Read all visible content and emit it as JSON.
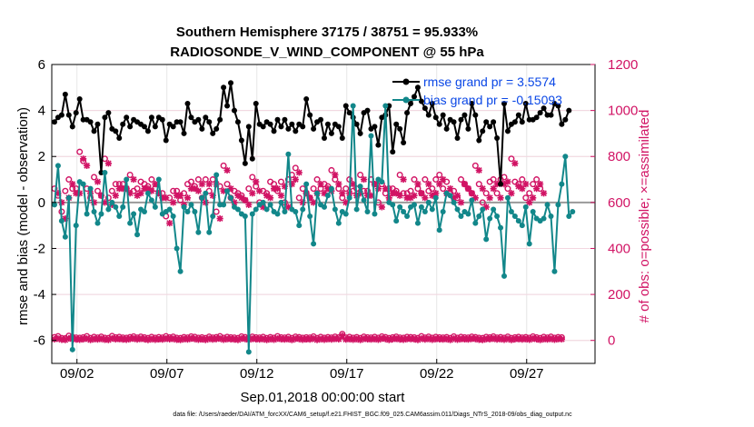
{
  "chart_data": {
    "type": "line",
    "title": "Southern Hemisphere 37175 / 38751 = 95.933%",
    "subtitle": "RADIOSONDE_V_WIND_COMPONENT @ 55 hPa",
    "xlabel": "Sep.01,2018 00:00:00 start",
    "ylabel_left": "rmse and bias (model - observation)",
    "ylabel_right": "# of obs: o=possible; ×=assimilated",
    "footnote": "data file: /Users/raeder/DAI/ATM_forcXX/CAM6_setup/f.e21.FHIST_BGC.f09_025.CAM6assim.011/Diags_NTrS_2018-09/obs_diag_output.nc",
    "xlim": [
      0.6,
      30.8
    ],
    "ylim_left": [
      -7,
      6
    ],
    "ylim_right": [
      -100,
      1200
    ],
    "x_ticks": [
      2,
      7,
      12,
      17,
      22,
      27
    ],
    "x_tick_labels": [
      "09/02",
      "09/07",
      "09/12",
      "09/17",
      "09/22",
      "09/27"
    ],
    "y_ticks_left": [
      -6,
      -4,
      -2,
      0,
      2,
      4,
      6
    ],
    "y_ticks_right": [
      0,
      200,
      400,
      600,
      800,
      1000,
      1200
    ],
    "grid": true,
    "legend": {
      "position": "top-right",
      "entries": [
        "rmse grand pr = 3.5574",
        "bias grand pr = -0.15093"
      ]
    },
    "colors": {
      "rmse": "#000000",
      "bias": "#12878a",
      "obs": "#d11364",
      "legend_text": "#0a47e6",
      "zero_line": "#9a9a9a"
    },
    "series": [
      {
        "name": "rmse",
        "values": [
          3.5,
          3.7,
          3.8,
          4.7,
          3.8,
          3.3,
          3.9,
          4.5,
          3.6,
          3.6,
          3.5,
          3.1,
          3.4,
          1.3,
          3.7,
          3.9,
          3.2,
          3.1,
          2.8,
          3.4,
          3.7,
          3.3,
          3.6,
          3.5,
          3.4,
          3.3,
          3.1,
          3.7,
          3.3,
          3.7,
          3.6,
          2.7,
          3.4,
          3.3,
          3.5,
          3.5,
          3.0,
          4.3,
          3.7,
          3.5,
          3.6,
          3.2,
          3.7,
          3.5,
          3.0,
          3.2,
          3.6,
          5.0,
          4.2,
          5.2,
          4.0,
          3.5,
          2.7,
          1.7,
          3.3,
          1.9,
          4.3,
          3.4,
          3.3,
          3.5,
          3.4,
          3.1,
          3.6,
          3.3,
          3.6,
          3.2,
          3.4,
          3.1,
          3.4,
          3.3,
          4.5,
          3.8,
          3.2,
          3.5,
          3.6,
          2.8,
          3.4,
          3.0,
          3.4,
          3.3,
          2.8,
          4.2,
          3.9,
          3.7,
          3.4,
          3.0,
          3.9,
          4.0,
          3.2,
          3.3,
          2.5,
          3.7,
          3.8,
          4.2,
          2.2,
          3.4,
          3.2,
          2.6,
          3.9,
          4.3,
          4.6,
          5.0,
          4.4,
          4.1,
          3.8,
          4.3,
          3.7,
          3.4,
          3.8,
          3.2,
          3.6,
          3.5,
          2.8,
          3.6,
          3.8,
          3.2,
          4.3,
          3.8,
          2.7,
          3.1,
          3.5,
          3.3,
          3.5,
          2.8,
          0.8,
          4.3,
          3.1,
          3.4,
          3.5,
          3.8,
          3.5,
          4.3,
          3.6,
          3.6,
          3.7,
          3.9,
          4.1,
          3.8,
          3.8,
          4.3,
          4.2,
          3.4,
          3.6,
          4.0
        ],
        "x_start": 0.75,
        "x_step": 0.2
      },
      {
        "name": "bias",
        "values": [
          -0.1,
          1.6,
          -0.8,
          -1.5,
          0.2,
          -6.4,
          -1.0,
          0.9,
          0.8,
          -0.5,
          0.6,
          -0.4,
          -0.9,
          -0.5,
          1.3,
          -0.3,
          0.0,
          -0.2,
          -0.6,
          -0.2,
          1.0,
          -0.9,
          -0.5,
          -1.4,
          -0.3,
          -0.4,
          0.4,
          0.1,
          -0.2,
          1.0,
          -0.5,
          -0.4,
          -0.3,
          -0.6,
          -2.0,
          -3.0,
          -0.2,
          -0.4,
          -0.1,
          -0.4,
          -1.3,
          0.2,
          0.4,
          -1.3,
          -0.6,
          1.2,
          -0.1,
          -0.1,
          0.5,
          0.2,
          -0.2,
          -0.3,
          -0.5,
          -0.6,
          -6.5,
          -0.5,
          -0.3,
          -0.1,
          0.0,
          -0.3,
          -0.1,
          -0.4,
          -0.5,
          0.0,
          -0.4,
          2.1,
          -0.3,
          -0.4,
          -1.0,
          -0.3,
          0.8,
          -0.6,
          -1.8,
          0.4,
          -0.1,
          -0.2,
          0.3,
          0.6,
          -0.3,
          -0.9,
          -0.4,
          -0.5,
          0.2,
          4.2,
          -0.3,
          0.7,
          0.1,
          -0.4,
          2.9,
          -0.5,
          1.0,
          0.9,
          4.2,
          0.0,
          -0.1,
          -0.8,
          -0.2,
          -0.4,
          -0.6,
          -0.2,
          -0.1,
          -0.9,
          -0.2,
          -0.4,
          0.0,
          -0.3,
          0.2,
          -1.2,
          -0.4,
          0.4,
          0.3,
          0.0,
          -0.3,
          -0.6,
          -0.4,
          -0.5,
          0.1,
          -0.9,
          -0.6,
          -0.3,
          -1.6,
          -0.7,
          -0.3,
          -0.6,
          -1.1,
          -3.2,
          0.2,
          -0.4,
          -0.6,
          -0.8,
          -1.0,
          -0.2,
          -1.8,
          -0.4,
          -0.7,
          -0.8,
          -0.7,
          -0.1,
          -0.6,
          -3.0,
          -0.1,
          0.8,
          2.0,
          -0.6,
          -0.4
        ],
        "x_start": 0.75,
        "x_step": 0.2
      },
      {
        "name": "obs_possible",
        "values": [
          14,
          18,
          10,
          9,
          20,
          15,
          12,
          11,
          13,
          18,
          10,
          15,
          12,
          16,
          11,
          10,
          19,
          13,
          15,
          12,
          11,
          14,
          17,
          12,
          16,
          13,
          10,
          15,
          11,
          14,
          12,
          18,
          13,
          16,
          11,
          10,
          14,
          12,
          17,
          15,
          11,
          13,
          10,
          16,
          12,
          14,
          18,
          11,
          15,
          13,
          12,
          10,
          17,
          14,
          11,
          16,
          13,
          12,
          15,
          10,
          14,
          11,
          18,
          13,
          12,
          15,
          10,
          16,
          14,
          11,
          13,
          12,
          17,
          10,
          15,
          11,
          14,
          12,
          16,
          13,
          28,
          12,
          15,
          11,
          14,
          10,
          16,
          13,
          12,
          15,
          11,
          17,
          14,
          10,
          13,
          16,
          12,
          11,
          15,
          14,
          13,
          10,
          18,
          12,
          16,
          11,
          15,
          13,
          12,
          14,
          10,
          17,
          11,
          15,
          13,
          12,
          16,
          14,
          11,
          10,
          15,
          13,
          17,
          12,
          14,
          11,
          16,
          10,
          13,
          15,
          12,
          14,
          11,
          17,
          13,
          10,
          15,
          12,
          16,
          11,
          14,
          13
        ],
        "x_start": 0.75,
        "x_step": 0.2
      },
      {
        "name": "obs_assimilated",
        "values": [
          5,
          8,
          3,
          2,
          9,
          6,
          4,
          3,
          5,
          8,
          2,
          6,
          4,
          7,
          3,
          2,
          9,
          5,
          6,
          4,
          3,
          6,
          8,
          4,
          7,
          5,
          2,
          6,
          3,
          5,
          4,
          8,
          5,
          7,
          3,
          2,
          6,
          4,
          8,
          6,
          3,
          5,
          2,
          7,
          4,
          6,
          8,
          3,
          6,
          5,
          4,
          2,
          8,
          6,
          3,
          7,
          5,
          4,
          6,
          2,
          6,
          3,
          8,
          5,
          4,
          6,
          2,
          7,
          6,
          3,
          5,
          4,
          8,
          2,
          6,
          3,
          6,
          4,
          7,
          5,
          20,
          4,
          6,
          3,
          6,
          2,
          7,
          5,
          4,
          6,
          3,
          8,
          6,
          2,
          5,
          7,
          4,
          3,
          6,
          6,
          5,
          2,
          8,
          4,
          7,
          3,
          6,
          5,
          4,
          6,
          2,
          8,
          3,
          6,
          5,
          4,
          7,
          6,
          3,
          2,
          6,
          5,
          8,
          4,
          6,
          3,
          7,
          2,
          5,
          6,
          4,
          6,
          3,
          8,
          5,
          2,
          6,
          4,
          7,
          3,
          6,
          5
        ],
        "x_start": 0.75,
        "x_step": 0.2
      },
      {
        "name": "obs_possible_top",
        "values": [
          660,
          630,
          560,
          650,
          700,
          660,
          660,
          820,
          780,
          660,
          620,
          710,
          650,
          630,
          790,
          620,
          650,
          680,
          680,
          680,
          660,
          720,
          650,
          660,
          690,
          680,
          670,
          700,
          660,
          640,
          640,
          540,
          620,
          650,
          650,
          610,
          640,
          680,
          690,
          670,
          700,
          620,
          700,
          650,
          700,
          560,
          670,
          760,
          680,
          620,
          650,
          640,
          630,
          610,
          660,
          710,
          670,
          600,
          650,
          640,
          690,
          680,
          650,
          690,
          600,
          700,
          720,
          750,
          620,
          660,
          640,
          620,
          660,
          700,
          660,
          680,
          670,
          740,
          700,
          660,
          620,
          660,
          700,
          650,
          660,
          720,
          650,
          650,
          700,
          680,
          600,
          680,
          640,
          660,
          660,
          650,
          720,
          640,
          640,
          650,
          700,
          660,
          640,
          700,
          650,
          660,
          700,
          720,
          660,
          690,
          640,
          650,
          620,
          700,
          680,
          660,
          640,
          760,
          680,
          600,
          640,
          690,
          700,
          640,
          700,
          710,
          660,
          790,
          690,
          680,
          700,
          620,
          640,
          680,
          700,
          660
        ],
        "x_start": 0.75,
        "x_step": 0.2
      },
      {
        "name": "obs_assimilated_top",
        "values": [
          640,
          600,
          530,
          620,
          680,
          640,
          640,
          790,
          760,
          640,
          600,
          690,
          630,
          600,
          770,
          590,
          630,
          660,
          660,
          660,
          640,
          700,
          630,
          640,
          660,
          660,
          650,
          680,
          640,
          620,
          620,
          510,
          600,
          630,
          630,
          590,
          620,
          660,
          660,
          650,
          680,
          600,
          680,
          630,
          680,
          530,
          650,
          740,
          660,
          600,
          630,
          620,
          610,
          590,
          640,
          690,
          650,
          580,
          630,
          620,
          660,
          660,
          630,
          670,
          580,
          680,
          700,
          730,
          600,
          640,
          620,
          600,
          640,
          680,
          640,
          660,
          650,
          720,
          680,
          640,
          600,
          640,
          680,
          630,
          640,
          700,
          630,
          630,
          680,
          660,
          580,
          660,
          620,
          640,
          640,
          630,
          700,
          620,
          620,
          630,
          680,
          640,
          620,
          680,
          630,
          640,
          680,
          700,
          640,
          660,
          620,
          630,
          600,
          680,
          660,
          640,
          620,
          740,
          660,
          580,
          620,
          660,
          680,
          620,
          680,
          690,
          640,
          770,
          670,
          660,
          680,
          600,
          620,
          660,
          680,
          640
        ],
        "x_start": 0.95,
        "x_step": 0.2
      }
    ]
  }
}
